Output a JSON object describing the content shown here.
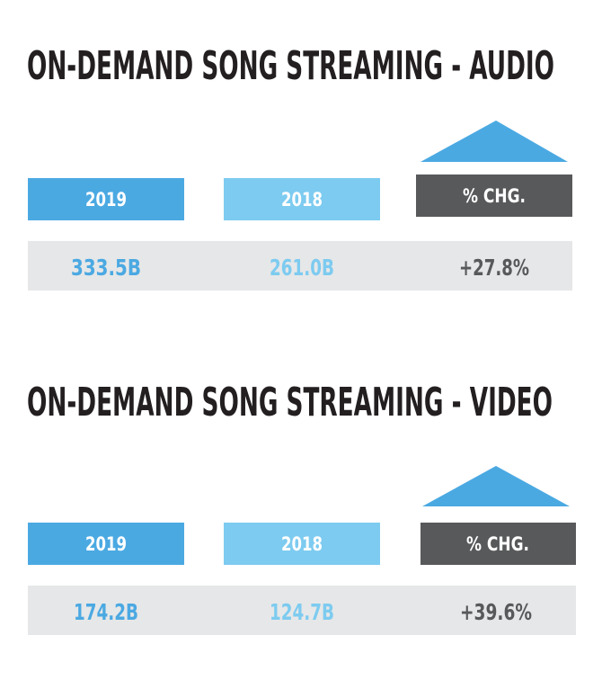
{
  "sections": [
    {
      "title": "ON-DEMAND SONG STREAMING - AUDIO",
      "headers": [
        "2019",
        "2018",
        "% CHG."
      ],
      "values": [
        "333.5B",
        "261.0B",
        "+27.8%"
      ]
    },
    {
      "title": "ON-DEMAND SONG STREAMING - VIDEO",
      "headers": [
        "2019",
        "2018",
        "% CHG."
      ],
      "values": [
        "174.2B",
        "124.7B",
        "+39.6%"
      ]
    }
  ]
}
